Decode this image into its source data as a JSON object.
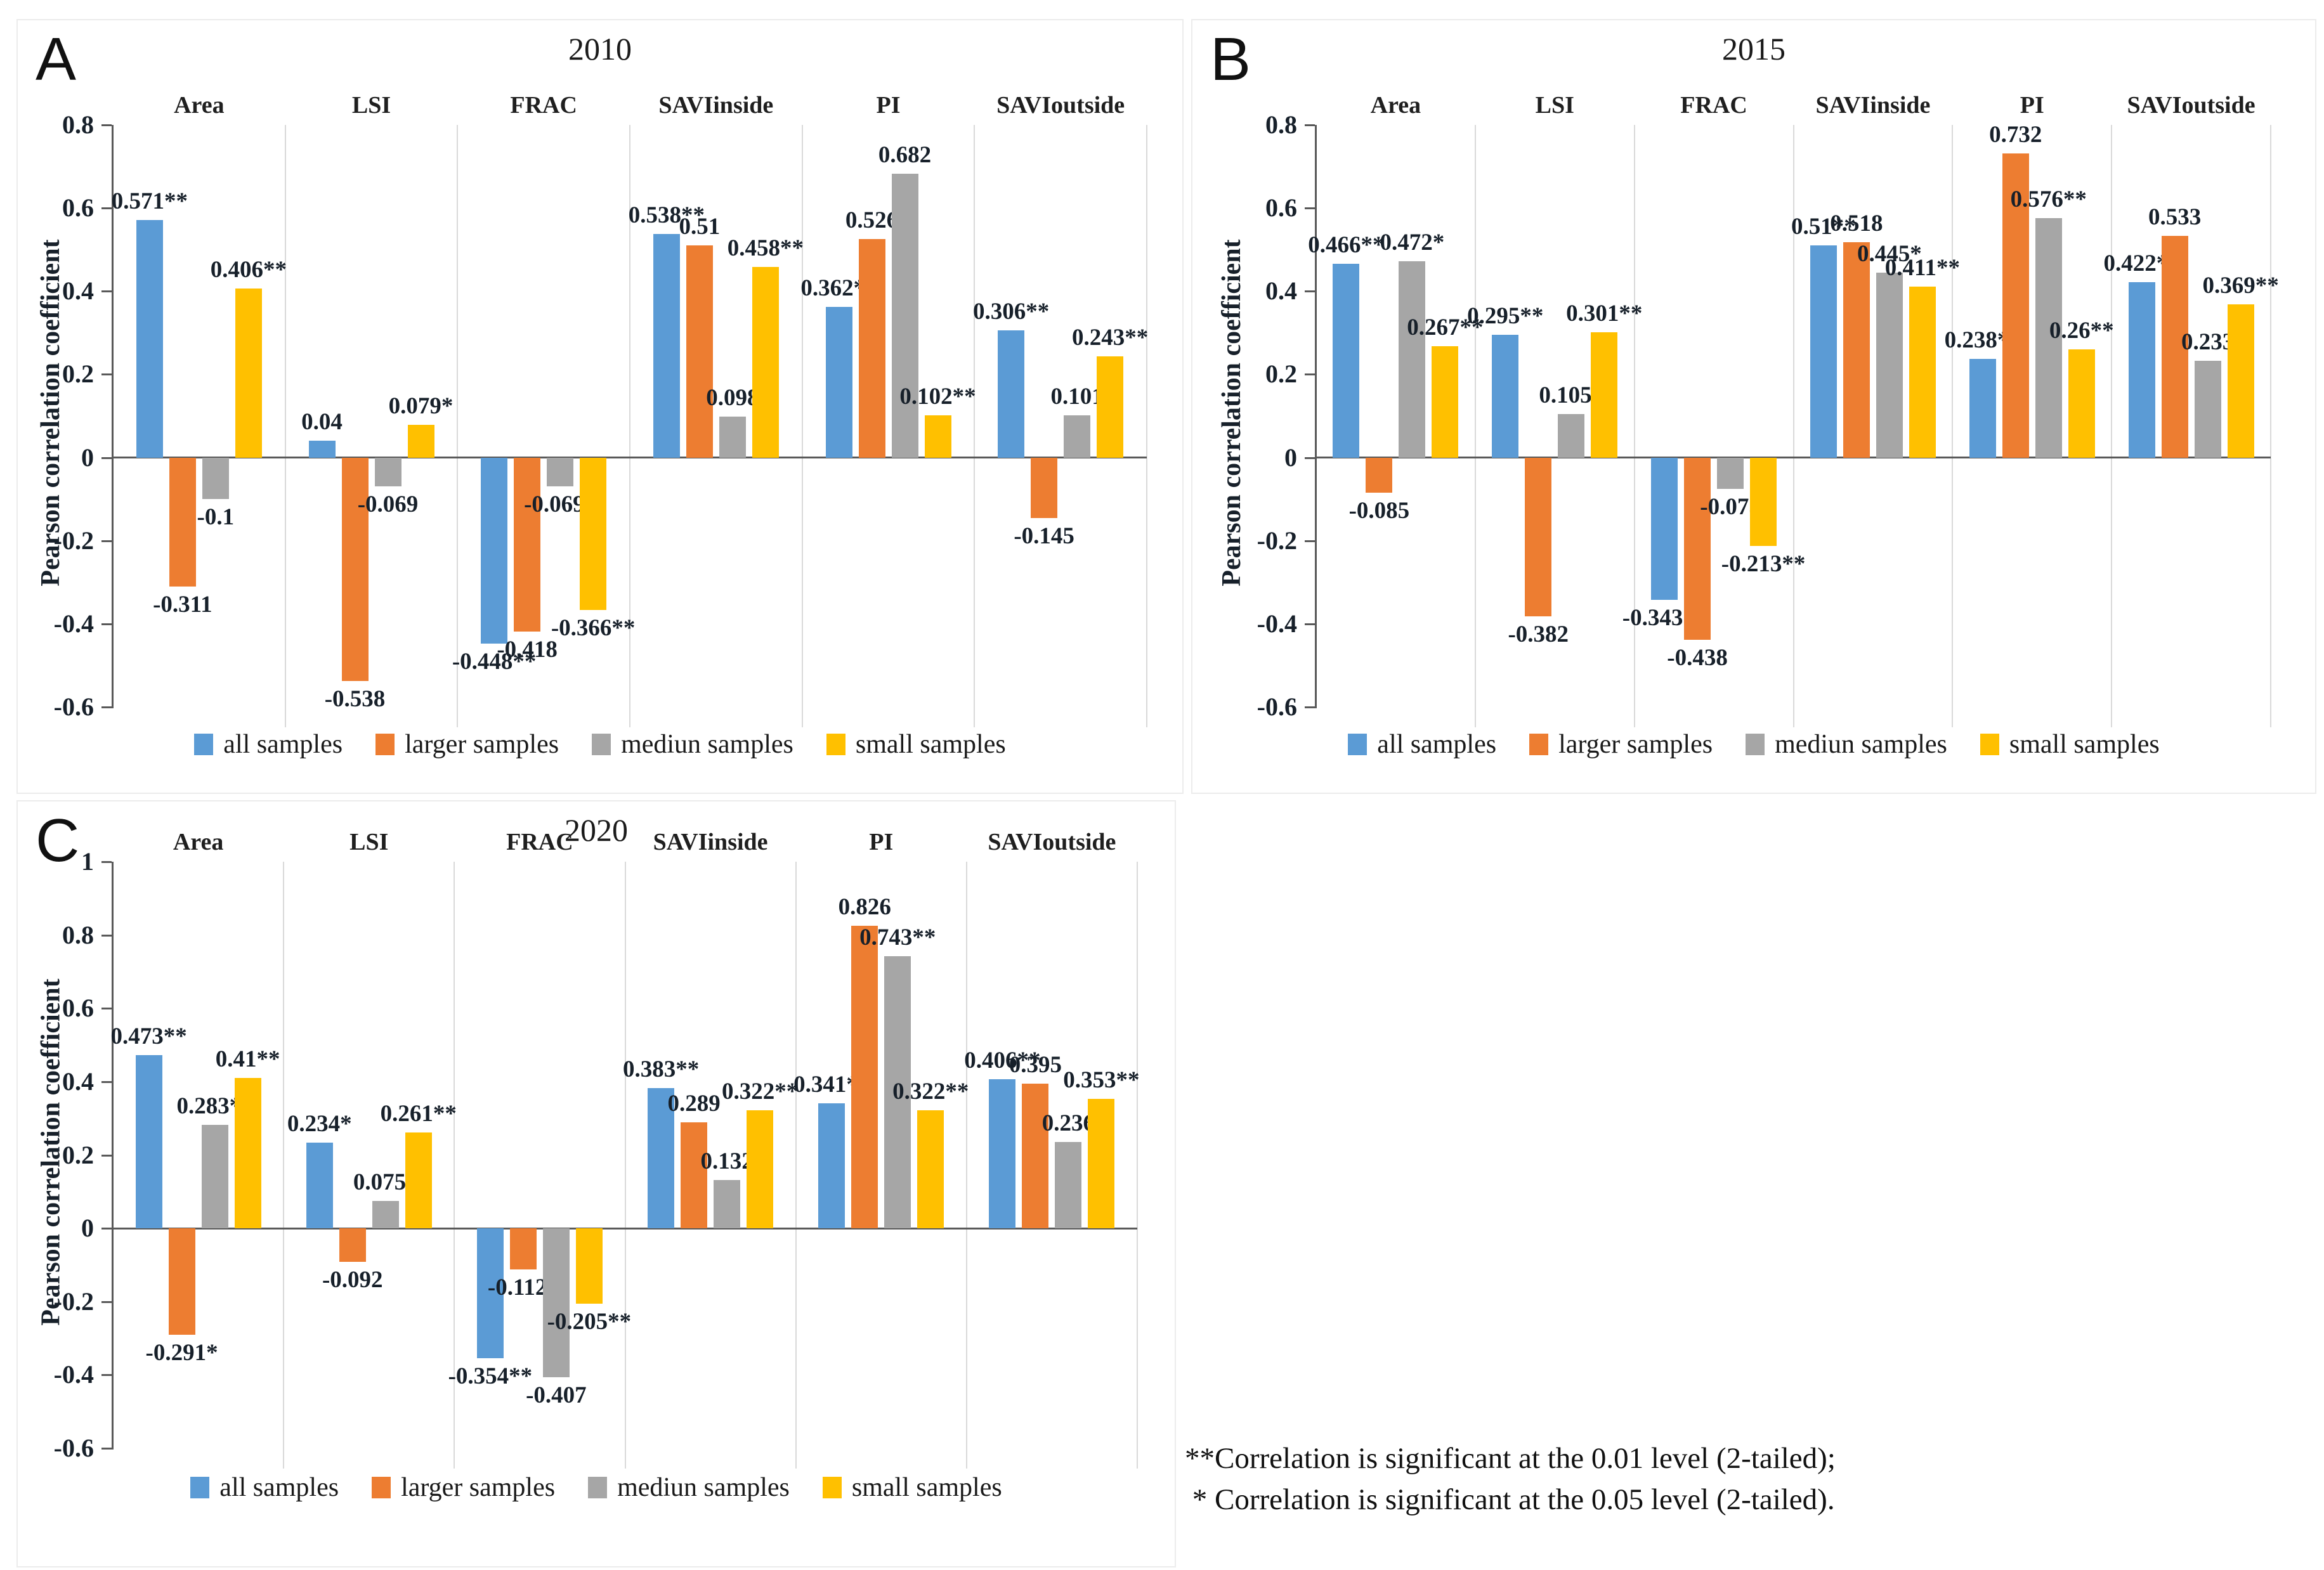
{
  "footnote": {
    "line1": "**Correlation is significant at the 0.01 level (2-tailed);",
    "line2": " * Correlation is significant at the 0.05 level (2-tailed)."
  },
  "chart_data": [
    {
      "type": "bar",
      "panel_label": "A",
      "title": "2010",
      "ylabel": "Pearson correlation coefficient",
      "legend_position": "bottom",
      "grid": "category-separators-only",
      "categories": [
        "Area",
        "LSI",
        "FRAC",
        "SAVIinside",
        "PI",
        "SAVIoutside"
      ],
      "ylim": [
        -0.6,
        0.8
      ],
      "ytick_values": [
        0.8,
        0.6,
        0.4,
        0.2,
        0,
        -0.2,
        -0.4,
        -0.6
      ],
      "ytick_labels": [
        "0.8",
        "0.6",
        "0.4",
        "0.2",
        "0",
        "-0.2",
        "-0.4",
        "-0.6"
      ],
      "series": [
        {
          "name": "all samples",
          "color": "#5B9BD5",
          "values": [
            0.571,
            0.04,
            -0.448,
            0.538,
            0.362,
            0.306
          ],
          "labels": [
            "0.571**",
            "0.04",
            "-0.448**",
            "0.538**",
            "0.362**",
            "0.306**"
          ]
        },
        {
          "name": "larger samples",
          "color": "#ED7D31",
          "values": [
            -0.311,
            -0.538,
            -0.418,
            0.51,
            0.526,
            -0.145
          ],
          "labels": [
            "-0.311",
            "-0.538",
            "-0.418",
            "0.51",
            "0.526",
            "-0.145"
          ]
        },
        {
          "name": "mediun samples",
          "color": "#A6A6A6",
          "values": [
            -0.1,
            -0.069,
            -0.069,
            0.098,
            0.682,
            0.101
          ],
          "labels": [
            "-0.1",
            "-0.069",
            "-0.069*",
            "0.098",
            "0.682",
            "0.101"
          ]
        },
        {
          "name": "small samples",
          "color": "#FFC000",
          "values": [
            0.406,
            0.079,
            -0.366,
            0.458,
            0.102,
            0.243
          ],
          "labels": [
            "0.406**",
            "0.079*",
            "-0.366**",
            "0.458**",
            "0.102**",
            "0.243**"
          ]
        }
      ]
    },
    {
      "type": "bar",
      "panel_label": "B",
      "title": "2015",
      "ylabel": "Pearson correlation coefficient",
      "legend_position": "bottom",
      "grid": "category-separators-only",
      "categories": [
        "Area",
        "LSI",
        "FRAC",
        "SAVIinside",
        "PI",
        "SAVIoutside"
      ],
      "ylim": [
        -0.6,
        0.8
      ],
      "ytick_values": [
        0.8,
        0.6,
        0.4,
        0.2,
        0,
        -0.2,
        -0.4,
        -0.6
      ],
      "ytick_labels": [
        "0.8",
        "0.6",
        "0.4",
        "0.2",
        "0",
        "-0.2",
        "-0.4",
        "-0.6"
      ],
      "series": [
        {
          "name": "all samples",
          "color": "#5B9BD5",
          "values": [
            0.466,
            0.295,
            -0.343,
            0.51,
            0.238,
            0.422
          ],
          "labels": [
            "0.466**",
            "0.295**",
            "-0.343**",
            "0.51**",
            "0.238**",
            "0.422**"
          ]
        },
        {
          "name": "larger samples",
          "color": "#ED7D31",
          "values": [
            -0.085,
            -0.382,
            -0.438,
            0.518,
            0.732,
            0.533
          ],
          "labels": [
            "-0.085",
            "-0.382",
            "-0.438",
            "0.518",
            "0.732",
            "0.533"
          ]
        },
        {
          "name": "mediun samples",
          "color": "#A6A6A6",
          "values": [
            0.472,
            0.105,
            -0.075,
            0.445,
            0.576,
            0.233
          ],
          "labels": [
            "0.472*",
            "0.105*",
            "-0.075",
            "0.445*",
            "0.576**",
            "0.233"
          ]
        },
        {
          "name": "small samples",
          "color": "#FFC000",
          "values": [
            0.267,
            0.301,
            -0.213,
            0.411,
            0.26,
            0.369
          ],
          "labels": [
            "0.267**",
            "0.301**",
            "-0.213**",
            "0.411**",
            "0.26**",
            "0.369**"
          ]
        }
      ]
    },
    {
      "type": "bar",
      "panel_label": "C",
      "title": "2020",
      "ylabel": "Pearson correlation coefficient",
      "legend_position": "bottom",
      "grid": "category-separators-only",
      "categories": [
        "Area",
        "LSI",
        "FRAC",
        "SAVIinside",
        "PI",
        "SAVIoutside"
      ],
      "ylim": [
        -0.6,
        1.0
      ],
      "ytick_values": [
        1,
        0.8,
        0.6,
        0.4,
        0.2,
        0,
        -0.2,
        -0.4,
        -0.6
      ],
      "ytick_labels": [
        "1",
        "0.8",
        "0.6",
        "0.4",
        "0.2",
        "0",
        "-0.2",
        "-0.4",
        "-0.6"
      ],
      "series": [
        {
          "name": "all samples",
          "color": "#5B9BD5",
          "values": [
            0.473,
            0.234,
            -0.354,
            0.383,
            0.341,
            0.406
          ],
          "labels": [
            "0.473**",
            "0.234*",
            "-0.354**",
            "0.383**",
            "0.341**",
            "0.406**"
          ]
        },
        {
          "name": "larger samples",
          "color": "#ED7D31",
          "values": [
            -0.291,
            -0.092,
            -0.112,
            0.289,
            0.826,
            0.395
          ],
          "labels": [
            "-0.291*",
            "-0.092",
            "-0.112*",
            "0.289",
            "0.826",
            "0.395"
          ]
        },
        {
          "name": "mediun samples",
          "color": "#A6A6A6",
          "values": [
            0.283,
            0.075,
            -0.407,
            0.132,
            0.743,
            0.236
          ],
          "labels": [
            "0.283**",
            "0.075*",
            "-0.407",
            "0.132",
            "0.743**",
            "0.236"
          ]
        },
        {
          "name": "small samples",
          "color": "#FFC000",
          "values": [
            0.41,
            0.261,
            -0.205,
            0.322,
            0.322,
            0.353
          ],
          "labels": [
            "0.41**",
            "0.261**",
            "-0.205**",
            "0.322**",
            "0.322**",
            "0.353**"
          ]
        }
      ]
    }
  ]
}
